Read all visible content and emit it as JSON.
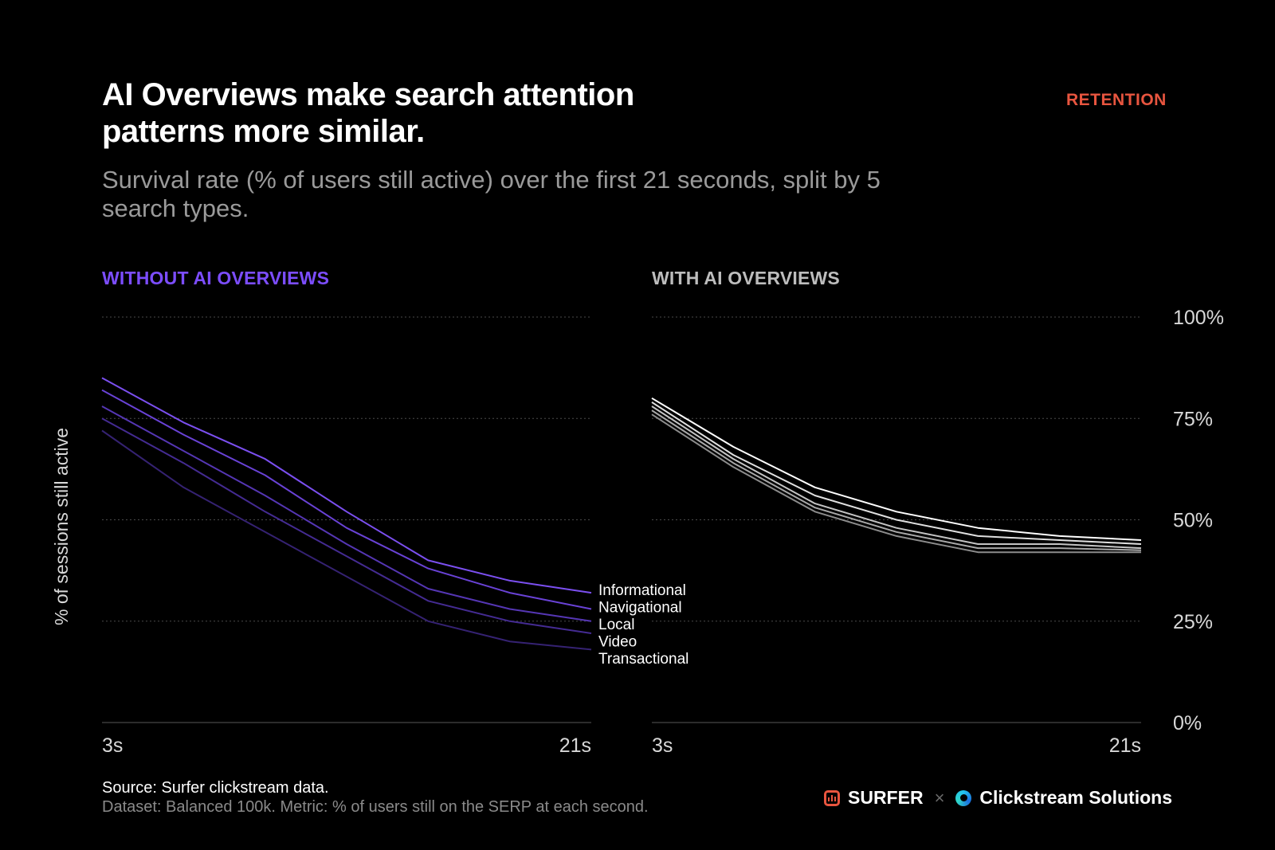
{
  "header": {
    "title": "AI Overviews make search attention patterns more similar.",
    "tag": "RETENTION",
    "subtitle": "Survival rate (% of users still active) over the first 21 seconds, split by 5 search types."
  },
  "ylabel": "% of sessions still active",
  "footer": {
    "source": "Source: Surfer clickstream data.",
    "dataset": "Dataset: Balanced 100k. Metric: % of users still on the SERP at each second.",
    "brand_surfer": "SURFER",
    "brand_separator": "×",
    "brand_clickstream": "Clickstream Solutions"
  },
  "colors": {
    "accent_left": "#7c4dff",
    "accent_right_title": "#bdbdbd",
    "tag": "#e8553f"
  },
  "chart_data": [
    {
      "type": "line",
      "title": "WITHOUT AI OVERVIEWS",
      "x": [
        3,
        6,
        9,
        12,
        15,
        18,
        21
      ],
      "x_tick_labels": [
        "3s",
        "21s"
      ],
      "ylim": [
        0,
        100
      ],
      "y_tick_labels": [
        "0%",
        "25%",
        "50%",
        "75%",
        "100%"
      ],
      "grid": true,
      "series": [
        {
          "name": "Informational",
          "color": "#7b4ff0",
          "values": [
            85,
            74,
            65,
            52,
            40,
            35,
            32
          ]
        },
        {
          "name": "Navigational",
          "color": "#6942d6",
          "values": [
            82,
            71,
            61,
            48,
            38,
            32,
            28
          ]
        },
        {
          "name": "Local",
          "color": "#5536b4",
          "values": [
            78,
            67,
            56,
            44,
            33,
            28,
            25
          ]
        },
        {
          "name": "Video",
          "color": "#442b92",
          "values": [
            75,
            64,
            52,
            41,
            30,
            25,
            22
          ]
        },
        {
          "name": "Transactional",
          "color": "#352272",
          "values": [
            72,
            58,
            47,
            36,
            25,
            20,
            18
          ]
        }
      ]
    },
    {
      "type": "line",
      "title": "WITH AI OVERVIEWS",
      "x": [
        3,
        6,
        9,
        12,
        15,
        18,
        21
      ],
      "x_tick_labels": [
        "3s",
        "21s"
      ],
      "ylim": [
        0,
        100
      ],
      "y_tick_labels": [
        "0%",
        "25%",
        "50%",
        "75%",
        "100%"
      ],
      "grid": true,
      "series": [
        {
          "color": "#ffffff",
          "values": [
            80,
            68,
            58,
            52,
            48,
            46,
            45
          ]
        },
        {
          "color": "#e0e0e0",
          "values": [
            79,
            66,
            56,
            50,
            46,
            45,
            44
          ]
        },
        {
          "color": "#c4c4c4",
          "values": [
            78,
            65,
            54,
            48,
            44,
            44,
            43
          ]
        },
        {
          "color": "#a8a8a8",
          "values": [
            77,
            64,
            53,
            47,
            43,
            43,
            42.5
          ]
        },
        {
          "color": "#8c8c8c",
          "values": [
            76,
            63,
            52,
            46,
            42,
            42,
            42
          ]
        }
      ]
    }
  ]
}
